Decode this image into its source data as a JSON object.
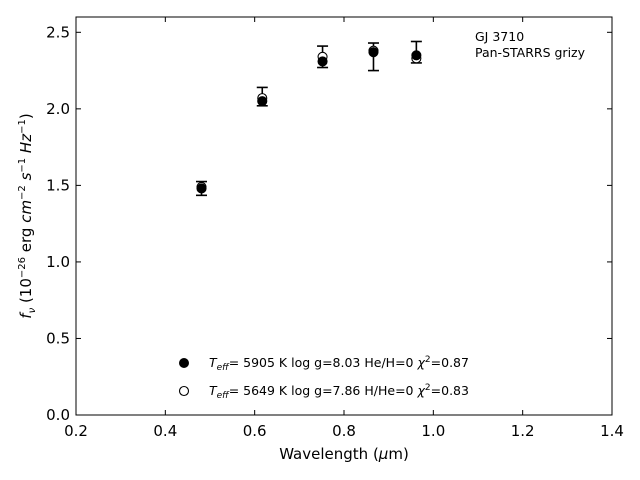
{
  "chart_data": {
    "type": "scatter",
    "xlabel": "Wavelength (μm)",
    "ylabel": "f_ν (10^-26 erg cm^-2 s^-1 Hz^-1)",
    "xlim": [
      0.2,
      1.4
    ],
    "ylim": [
      0.0,
      2.6
    ],
    "x_ticks": [
      "0.2",
      "0.4",
      "0.6",
      "0.8",
      "1.0",
      "1.2",
      "1.4"
    ],
    "y_ticks": [
      "0.0",
      "0.5",
      "1.0",
      "1.5",
      "2.0",
      "2.5"
    ],
    "annotations": [
      "GJ 3710",
      "Pan-STARRS grizy"
    ],
    "legend_position": "bottom-center",
    "grid": false,
    "observed": {
      "x": [
        0.481,
        0.617,
        0.752,
        0.866,
        0.962
      ],
      "y": [
        1.48,
        2.08,
        2.34,
        2.34,
        2.37
      ],
      "err": [
        0.045,
        0.06,
        0.07,
        0.09,
        0.07
      ]
    },
    "series": [
      {
        "name": "Teff= 5905 K log g=8.03 He/H=0 χ2=0.87",
        "legend": {
          "teff": "5905 K",
          "logg": "log g=8.03",
          "comp": "He/H=0",
          "chi2": "=0.87"
        },
        "marker": "filled",
        "x": [
          0.481,
          0.617,
          0.752,
          0.866,
          0.962
        ],
        "y": [
          1.48,
          2.05,
          2.31,
          2.37,
          2.35
        ]
      },
      {
        "name": "Teff= 5649 K log g=7.86 H/He=0 χ2=0.83",
        "legend": {
          "teff": "5649 K",
          "logg": "log g=7.86",
          "comp": "H/He=0",
          "chi2": "=0.83"
        },
        "marker": "open",
        "x": [
          0.481,
          0.617,
          0.752,
          0.866,
          0.962
        ],
        "y": [
          1.49,
          2.07,
          2.34,
          2.38,
          2.33
        ]
      }
    ]
  }
}
